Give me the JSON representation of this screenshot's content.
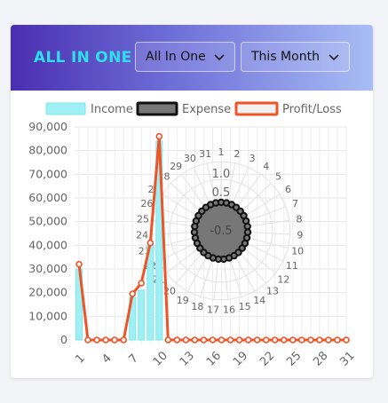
{
  "header": {
    "title": "ALL IN ONE",
    "type_select": {
      "value": "All In One",
      "icon": "chevron-down-icon"
    },
    "period_select": {
      "value": "This Month",
      "icon": "chevron-down-icon"
    }
  },
  "colors": {
    "title": "#2ee0ee",
    "income_fill": "#9ef0f4",
    "income_stroke": "#7fe7ee",
    "expense_fill": "#777777",
    "expense_stroke": "#111111",
    "profit_stroke": "#ee5426",
    "profit_fill": "#f0f0f0"
  },
  "chart_data": [
    {
      "type": "bar",
      "title": "",
      "x_ticks": [
        "1",
        "4",
        "7",
        "10",
        "13",
        "16",
        "19",
        "22",
        "25",
        "28",
        "31"
      ],
      "categories": [
        "1",
        "2",
        "3",
        "4",
        "5",
        "6",
        "7",
        "8",
        "9",
        "10",
        "11",
        "12",
        "13",
        "14",
        "15",
        "16",
        "17",
        "18",
        "19",
        "20",
        "21",
        "22",
        "23",
        "24",
        "25",
        "26",
        "27",
        "28",
        "29",
        "30",
        "31"
      ],
      "y_ticks": [
        "0",
        "10,000",
        "20,000",
        "30,000",
        "40,000",
        "50,000",
        "60,000",
        "70,000",
        "80,000",
        "90,000"
      ],
      "ylim": [
        0,
        90000
      ],
      "legend": [
        "Income",
        "Expense",
        "Profit/Loss"
      ],
      "legend_position": "top",
      "grid": true,
      "series": [
        {
          "name": "Income",
          "type": "bar",
          "values": [
            30000,
            0,
            0,
            0,
            0,
            0,
            18000,
            21000,
            40000,
            84000,
            0,
            0,
            0,
            0,
            0,
            0,
            0,
            0,
            0,
            0,
            0,
            0,
            0,
            0,
            0,
            0,
            0,
            0,
            0,
            0,
            0
          ]
        },
        {
          "name": "Profit/Loss",
          "type": "line",
          "values": [
            32000,
            0,
            0,
            0,
            0,
            0,
            19500,
            24000,
            41000,
            86000,
            0,
            0,
            0,
            0,
            0,
            0,
            0,
            0,
            0,
            0,
            0,
            0,
            0,
            0,
            0,
            0,
            0,
            0,
            0,
            0,
            0
          ]
        }
      ]
    },
    {
      "type": "radar",
      "labels": [
        "1",
        "2",
        "3",
        "4",
        "5",
        "6",
        "7",
        "8",
        "9",
        "10",
        "11",
        "12",
        "13",
        "14",
        "15",
        "16",
        "17",
        "18",
        "19",
        "20",
        "21",
        "22",
        "23",
        "24",
        "25",
        "26",
        "27",
        "28",
        "29",
        "30",
        "31"
      ],
      "r_ticks": [
        "-0.5",
        "0.5",
        "1.0"
      ],
      "series": [
        {
          "name": "Expense",
          "values": [
            0,
            0,
            0,
            0,
            0,
            0,
            0,
            0,
            0,
            0,
            0,
            0,
            0,
            0,
            0,
            0,
            0,
            0,
            0,
            0,
            0,
            0,
            0,
            0,
            0,
            0,
            0,
            0,
            0,
            0,
            0
          ]
        }
      ]
    }
  ]
}
